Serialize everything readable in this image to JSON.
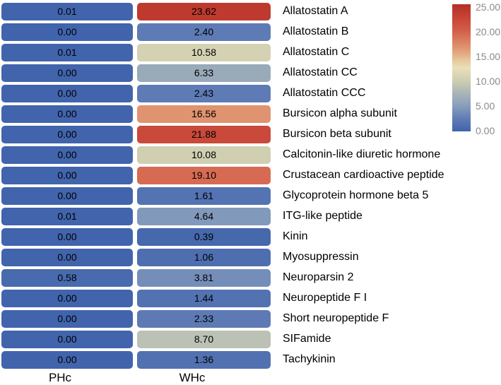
{
  "chart_data": {
    "type": "heatmap",
    "columns": [
      "PHc",
      "WHc"
    ],
    "rows": [
      "Allatostatin A",
      "Allatostatin B",
      "Allatostatin C",
      "Allatostatin CC",
      "Allatostatin CCC",
      "Bursicon alpha subunit",
      "Bursicon beta subunit",
      "Calcitonin-like diuretic hormone",
      "Crustacean cardioactive peptide",
      "Glycoprotein hormone beta 5",
      "ITG-like peptide",
      "Kinin",
      "Myosuppressin",
      "Neuroparsin 2",
      "Neuropeptide F I",
      "Short neuropeptide F",
      "SIFamide",
      "Tachykinin"
    ],
    "values": [
      [
        0.01,
        23.62
      ],
      [
        0.0,
        2.4
      ],
      [
        0.01,
        10.58
      ],
      [
        0.0,
        6.33
      ],
      [
        0.0,
        2.43
      ],
      [
        0.0,
        16.56
      ],
      [
        0.0,
        21.88
      ],
      [
        0.0,
        10.08
      ],
      [
        0.0,
        19.1
      ],
      [
        0.0,
        1.61
      ],
      [
        0.01,
        4.64
      ],
      [
        0.0,
        0.39
      ],
      [
        0.0,
        1.06
      ],
      [
        0.58,
        3.81
      ],
      [
        0.0,
        1.44
      ],
      [
        0.0,
        2.33
      ],
      [
        0.0,
        8.7
      ],
      [
        0.0,
        1.36
      ]
    ],
    "value_decimals": 2,
    "cell_text_color": "#000000",
    "colorbar": {
      "min": 0.0,
      "max": 25.0,
      "tick_labels": [
        "25.00",
        "20.00",
        "15.00",
        "10.00",
        "5.00",
        "0.00"
      ],
      "tick_color": "#8a8a8a"
    },
    "colormap_stops": [
      {
        "value": 0,
        "color": "#4164ac"
      },
      {
        "value": 2.5,
        "color": "#5f7cb5"
      },
      {
        "value": 5,
        "color": "#879ebc"
      },
      {
        "value": 7.5,
        "color": "#a9b5b6"
      },
      {
        "value": 10,
        "color": "#cfceb1"
      },
      {
        "value": 12.5,
        "color": "#e9e0ba"
      },
      {
        "value": 14,
        "color": "#e7c69c"
      },
      {
        "value": 15.5,
        "color": "#e2a67f"
      },
      {
        "value": 17.5,
        "color": "#dc8363"
      },
      {
        "value": 20,
        "color": "#d25c48"
      },
      {
        "value": 22.5,
        "color": "#c64335"
      },
      {
        "value": 25,
        "color": "#b53026"
      }
    ],
    "legend_position": "right",
    "grid": false,
    "title": ""
  }
}
